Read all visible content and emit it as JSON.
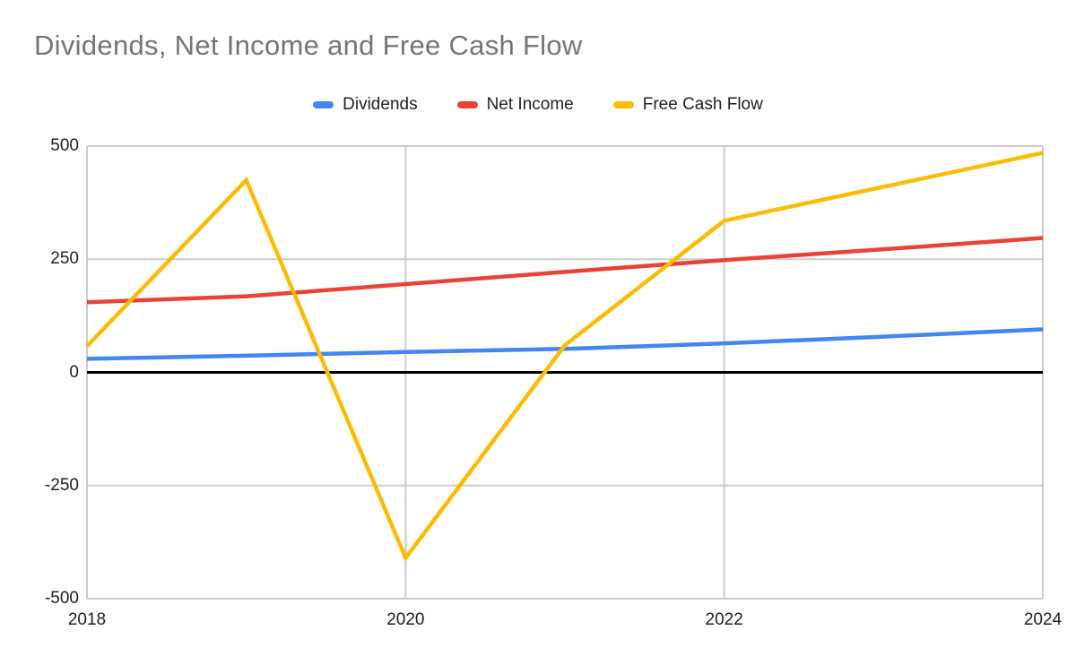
{
  "header": {
    "title": "Dividends, Net Income and Free Cash Flow",
    "title_color": "#757575"
  },
  "legend": {
    "position": "top",
    "items": [
      {
        "label": "Dividends",
        "color": "#4285f4"
      },
      {
        "label": "Net Income",
        "color": "#ea4335"
      },
      {
        "label": "Free Cash Flow",
        "color": "#fbbc04"
      }
    ]
  },
  "chart_data": {
    "type": "line",
    "title": "Dividends, Net Income and Free Cash Flow",
    "xlabel": "",
    "ylabel": "",
    "x": [
      2018,
      2019,
      2020,
      2021,
      2022,
      2023,
      2024
    ],
    "series": [
      {
        "name": "Dividends",
        "color": "#4285f4",
        "values": [
          30,
          37,
          45,
          52,
          64,
          79,
          95
        ]
      },
      {
        "name": "Net Income",
        "color": "#ea4335",
        "values": [
          155,
          168,
          195,
          222,
          248,
          272,
          297
        ]
      },
      {
        "name": "Free Cash Flow",
        "color": "#fbbc04",
        "values": [
          58,
          425,
          -410,
          60,
          335,
          410,
          485
        ]
      }
    ],
    "xlim": [
      2018,
      2024
    ],
    "ylim": [
      -500,
      500
    ],
    "y_ticks": [
      500,
      250,
      0,
      -250,
      -500
    ],
    "x_ticks": [
      2018,
      2020,
      2022,
      2024
    ],
    "x_gridlines": [
      2020,
      2022
    ],
    "grid": true,
    "legend_position": "top",
    "colors": {
      "gridline": "#cccccc",
      "plot_border": "#cccccc",
      "zero_line": "#000000",
      "tick_label": "#212121"
    }
  }
}
